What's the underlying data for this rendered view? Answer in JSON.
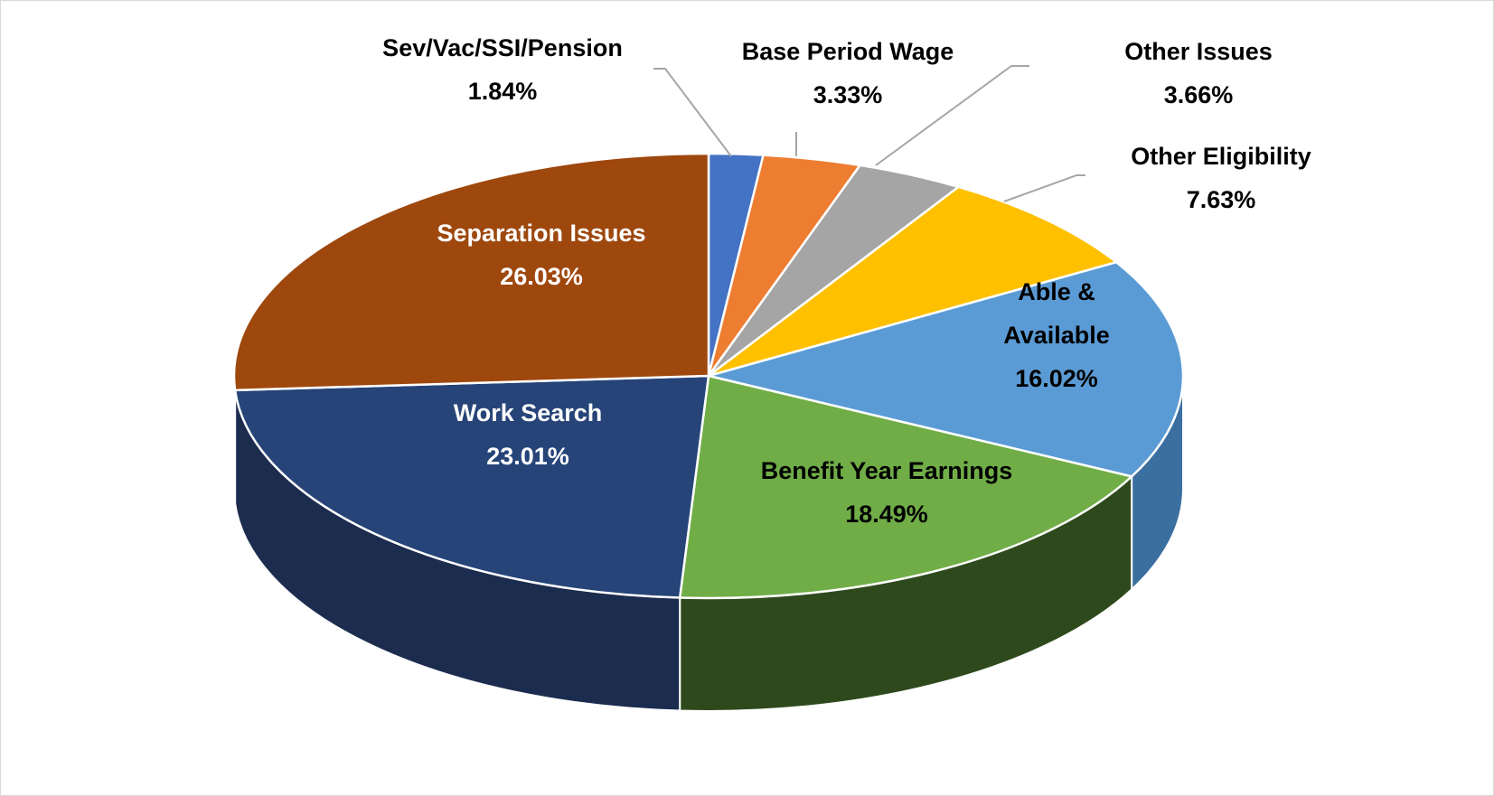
{
  "chart_data": {
    "type": "pie",
    "style": "3d",
    "title": "",
    "categories": [
      "Sev/Vac/SSI/Pension",
      "Base Period Wage",
      "Other Issues",
      "Other Eligibility",
      "Able & Available",
      "Benefit Year Earnings",
      "Work Search",
      "Separation Issues"
    ],
    "values": [
      1.84,
      3.33,
      3.66,
      7.63,
      16.02,
      18.49,
      23.01,
      26.03
    ],
    "value_labels": [
      "1.84%",
      "3.33%",
      "3.66%",
      "7.63%",
      "16.02%",
      "18.49%",
      "23.01%",
      "26.03%"
    ],
    "colors": [
      "#4472C4",
      "#ED7D31",
      "#A5A5A5",
      "#FFC000",
      "#5B9BD5",
      "#70AD47",
      "#264478",
      "#9E480E"
    ],
    "side_colors": [
      "#2f5597",
      "#b45a1f",
      "#7a7a7a",
      "#bf9000",
      "#3b6fa0",
      "#2e4a1c",
      "#1c2c4f",
      "#6e320a"
    ],
    "legend": "none"
  }
}
